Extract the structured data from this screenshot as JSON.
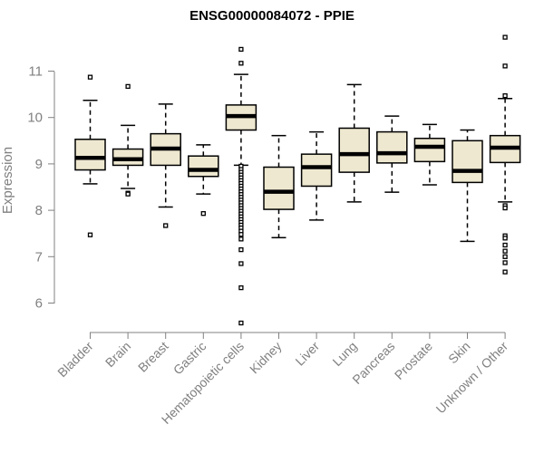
{
  "chart_data": {
    "type": "box",
    "title": "ENSG00000084072 - PPIE",
    "xlabel": "",
    "ylabel": "Expression",
    "ylim": [
      5.5,
      11.7
    ],
    "yticks": [
      "6",
      "7",
      "8",
      "9",
      "10",
      "11"
    ],
    "grid": false,
    "colors": {
      "box_fill": "#EEE8D0",
      "box_stroke": "#000000",
      "median": "#000000",
      "axis": "#808080"
    },
    "categories": [
      "Bladder",
      "Brain",
      "Breast",
      "Gastric",
      "Hematopoietic cells",
      "Kidney",
      "Liver",
      "Lung",
      "Pancreas",
      "Prostate",
      "Skin",
      "Unknown / Other"
    ],
    "boxes": [
      {
        "q1": 8.87,
        "median": 9.13,
        "q3": 9.53,
        "whisker_low": 8.57,
        "whisker_high": 10.37,
        "outliers": [
          10.87,
          7.47
        ]
      },
      {
        "q1": 8.97,
        "median": 9.1,
        "q3": 9.32,
        "whisker_low": 8.47,
        "whisker_high": 9.83,
        "outliers": [
          10.67,
          8.37,
          8.35
        ]
      },
      {
        "q1": 8.97,
        "median": 9.33,
        "q3": 9.65,
        "whisker_low": 8.07,
        "whisker_high": 10.29,
        "outliers": [
          7.67
        ]
      },
      {
        "q1": 8.73,
        "median": 8.87,
        "q3": 9.17,
        "whisker_low": 8.35,
        "whisker_high": 9.41,
        "outliers": [
          7.93
        ]
      },
      {
        "q1": 9.73,
        "median": 10.03,
        "q3": 10.27,
        "whisker_low": 8.97,
        "whisker_high": 10.93,
        "outliers": [
          11.47,
          11.17,
          8.95,
          8.88,
          8.82,
          8.76,
          8.7,
          8.64,
          8.58,
          8.52,
          8.46,
          8.4,
          8.34,
          8.28,
          8.22,
          8.16,
          8.1,
          8.04,
          7.98,
          7.92,
          7.86,
          7.8,
          7.74,
          7.68,
          7.62,
          7.55,
          7.48,
          7.38,
          7.15,
          6.85,
          6.33,
          5.57
        ]
      },
      {
        "q1": 8.02,
        "median": 8.4,
        "q3": 8.93,
        "whisker_low": 7.41,
        "whisker_high": 9.61,
        "outliers": []
      },
      {
        "q1": 8.52,
        "median": 8.93,
        "q3": 9.21,
        "whisker_low": 7.79,
        "whisker_high": 9.69,
        "outliers": []
      },
      {
        "q1": 8.82,
        "median": 9.21,
        "q3": 9.77,
        "whisker_low": 8.18,
        "whisker_high": 10.71,
        "outliers": []
      },
      {
        "q1": 9.02,
        "median": 9.23,
        "q3": 9.69,
        "whisker_low": 8.39,
        "whisker_high": 10.03,
        "outliers": []
      },
      {
        "q1": 9.05,
        "median": 9.37,
        "q3": 9.55,
        "whisker_low": 8.55,
        "whisker_high": 9.85,
        "outliers": []
      },
      {
        "q1": 8.6,
        "median": 8.85,
        "q3": 9.5,
        "whisker_low": 7.33,
        "whisker_high": 9.73,
        "outliers": []
      },
      {
        "q1": 9.03,
        "median": 9.35,
        "q3": 9.61,
        "whisker_low": 8.18,
        "whisker_high": 10.41,
        "outliers": [
          11.73,
          11.11,
          10.47,
          8.1,
          8.05,
          7.45,
          7.4,
          7.25,
          7.12,
          7.0,
          6.87,
          6.67
        ]
      }
    ]
  }
}
